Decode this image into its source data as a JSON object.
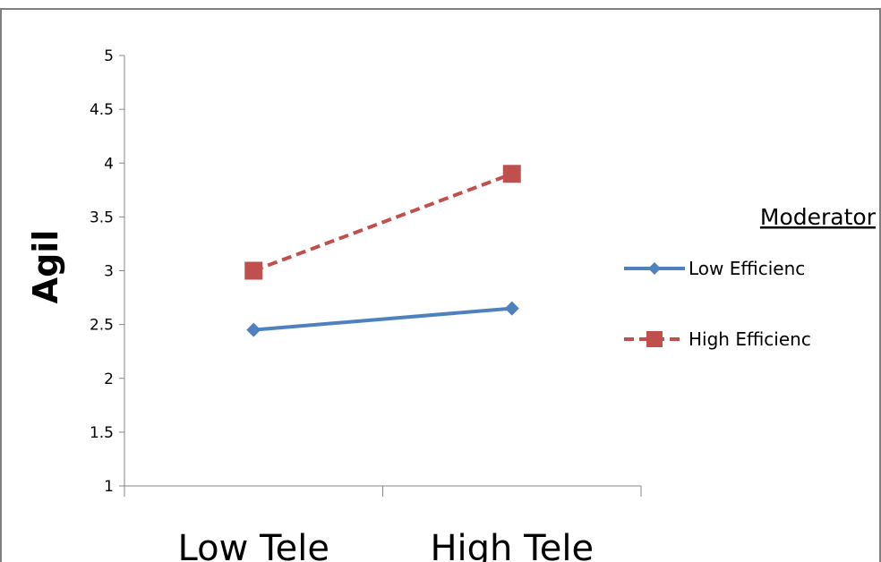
{
  "chart_data": {
    "type": "line",
    "categories": [
      "Low Tele",
      "High Tele"
    ],
    "ylabel": "Agil",
    "xlabel": "",
    "ylim": [
      1,
      5
    ],
    "yticks": [
      "1",
      "1.5",
      "2",
      "2.5",
      "3",
      "3.5",
      "4",
      "4.5",
      "5"
    ],
    "grid": false,
    "legend_title": "Moderator",
    "legend_position": "right",
    "series": [
      {
        "name": "Low Efficienc",
        "values": [
          2.45,
          2.65
        ],
        "color": "#4f81bd",
        "dash": "solid",
        "marker": "diamond"
      },
      {
        "name": "High Efficienc",
        "values": [
          3.0,
          3.9
        ],
        "color": "#c0504d",
        "dash": "dashed",
        "marker": "square"
      }
    ]
  }
}
